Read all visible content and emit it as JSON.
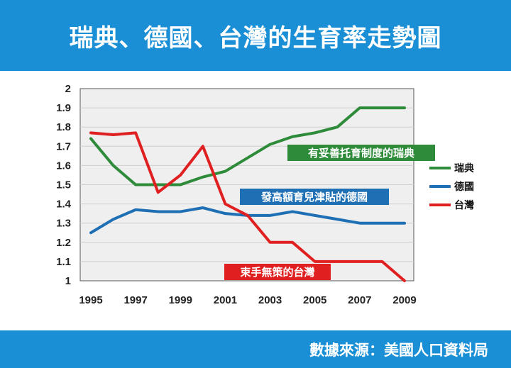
{
  "title": "瑞典、德國、台灣的生育率走勢圖",
  "source": "數據來源：美國人口資料局",
  "colors": {
    "header_bg": "#1a8fd6",
    "sweden": "#2e8b3a",
    "germany": "#1f6fb5",
    "taiwan": "#e02020"
  },
  "chart_data": {
    "type": "line",
    "title": "瑞典、德國、台灣的生育率走勢圖",
    "xlabel": "",
    "ylabel": "",
    "x_ticks": [
      "1995",
      "1997",
      "1999",
      "2001",
      "2003",
      "2005",
      "2007",
      "2009"
    ],
    "y_ticks": [
      "2",
      "1.9",
      "1.8",
      "1.7",
      "1.6",
      "1.5",
      "1.4",
      "1.3",
      "1.2",
      "1.1",
      "1"
    ],
    "xlim": [
      1995,
      2009
    ],
    "ylim": [
      1,
      2
    ],
    "grid": true,
    "legend_position": "right",
    "x": [
      1995,
      1996,
      1997,
      1998,
      1999,
      2000,
      2001,
      2002,
      2003,
      2004,
      2005,
      2006,
      2007,
      2008,
      2009
    ],
    "series": [
      {
        "name": "瑞典",
        "color": "#2e8b3a",
        "values": [
          1.74,
          1.6,
          1.5,
          1.5,
          1.5,
          1.54,
          1.57,
          1.64,
          1.71,
          1.75,
          1.77,
          1.8,
          1.9,
          1.9,
          1.9
        ]
      },
      {
        "name": "德國",
        "color": "#1f6fb5",
        "values": [
          1.25,
          1.32,
          1.37,
          1.36,
          1.36,
          1.38,
          1.35,
          1.34,
          1.34,
          1.36,
          1.34,
          1.32,
          1.3,
          1.3,
          1.3
        ]
      },
      {
        "name": "台灣",
        "color": "#e02020",
        "values": [
          1.77,
          1.76,
          1.77,
          1.46,
          1.55,
          1.7,
          1.4,
          1.34,
          1.2,
          1.2,
          1.1,
          1.1,
          1.1,
          1.1,
          1.0
        ]
      }
    ],
    "annotations": [
      {
        "text": "有妥善托育制度的瑞典",
        "color": "#2e8b3a"
      },
      {
        "text": "發高額育兒津貼的德國",
        "color": "#1f6fb5"
      },
      {
        "text": "束手無策的台灣",
        "color": "#e02020"
      }
    ]
  }
}
